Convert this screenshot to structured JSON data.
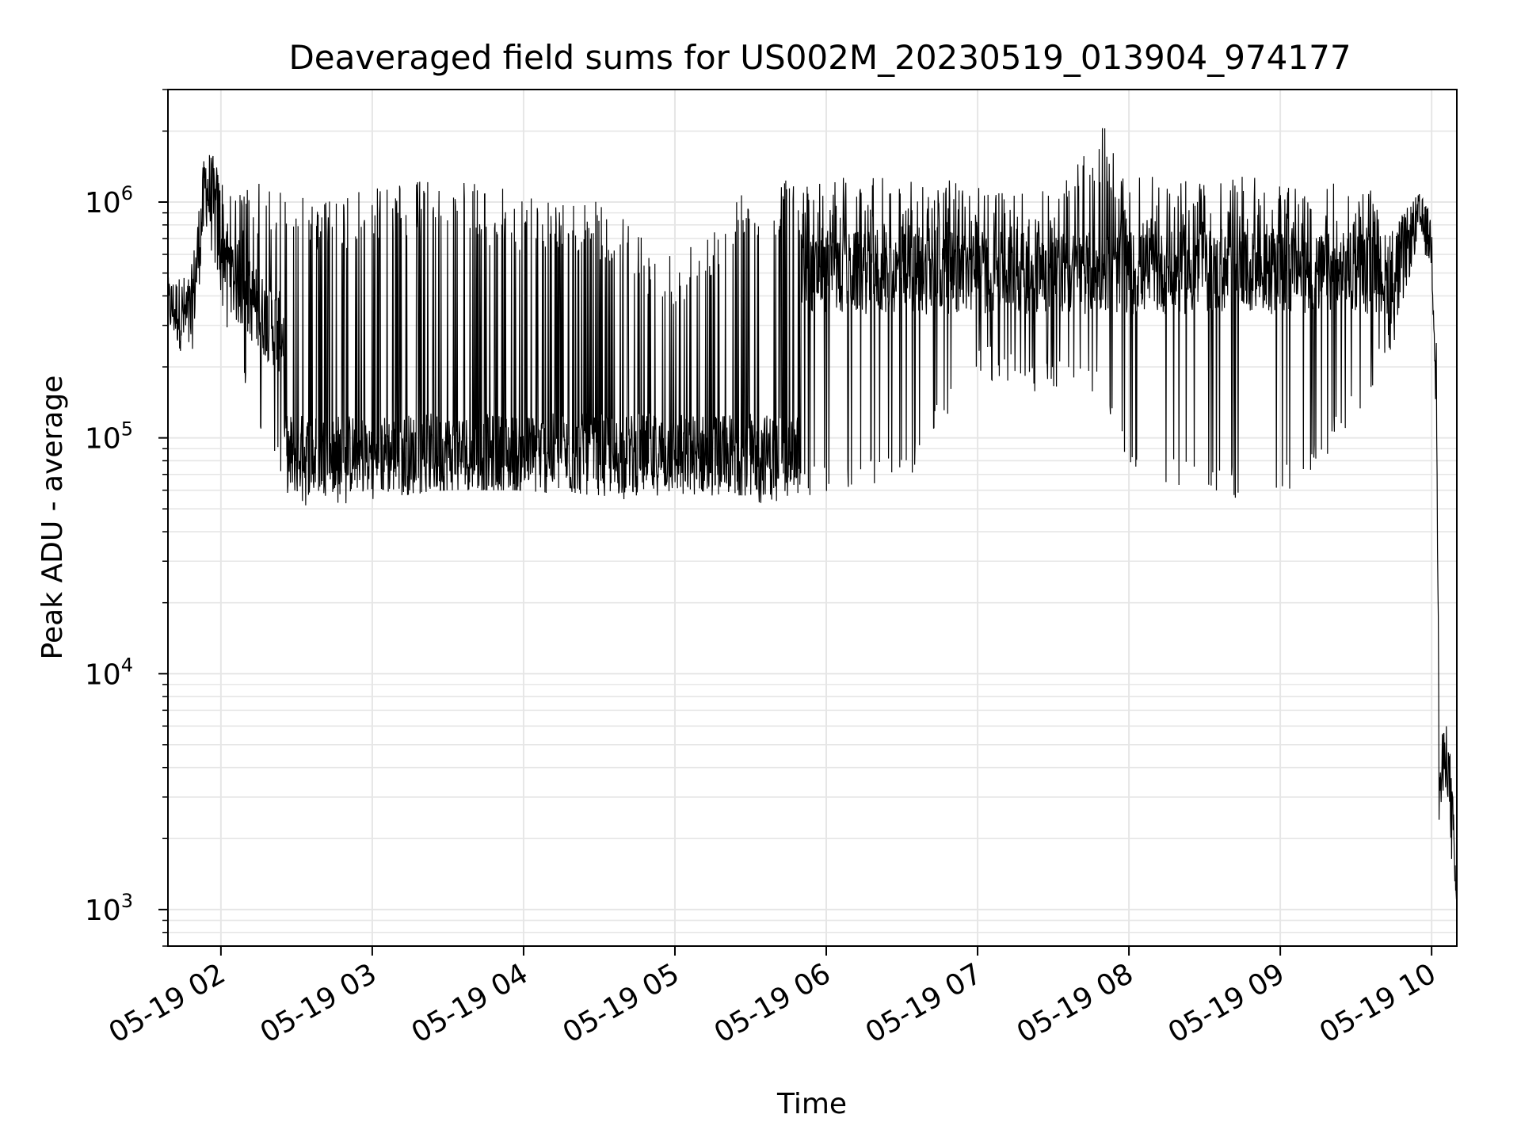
{
  "chart_data": {
    "type": "line",
    "title": "Deaveraged field sums for US002M_20230519_013904_974177",
    "xlabel": "Time",
    "ylabel": "Peak ADU - average",
    "y_scale": "log",
    "ylim": [
      700,
      3000000
    ],
    "xlim": [
      "2023-05-19 01:39",
      "2023-05-19 10:10"
    ],
    "grid": true,
    "line_color": "#000000",
    "grid_color": "#e6e6e6",
    "x_ticks": [
      {
        "t": "2023-05-19 02:00",
        "label": "05-19 02"
      },
      {
        "t": "2023-05-19 03:00",
        "label": "05-19 03"
      },
      {
        "t": "2023-05-19 04:00",
        "label": "05-19 04"
      },
      {
        "t": "2023-05-19 05:00",
        "label": "05-19 05"
      },
      {
        "t": "2023-05-19 06:00",
        "label": "05-19 06"
      },
      {
        "t": "2023-05-19 07:00",
        "label": "05-19 07"
      },
      {
        "t": "2023-05-19 08:00",
        "label": "05-19 08"
      },
      {
        "t": "2023-05-19 09:00",
        "label": "05-19 09"
      },
      {
        "t": "2023-05-19 10:00",
        "label": "05-19 10"
      }
    ],
    "y_ticks": [
      {
        "value": 1000,
        "base": "10",
        "exp": "3"
      },
      {
        "value": 10000,
        "base": "10",
        "exp": "4"
      },
      {
        "value": 100000,
        "base": "10",
        "exp": "5"
      },
      {
        "value": 1000000,
        "base": "10",
        "exp": "6"
      }
    ],
    "series": [
      {
        "envelope": [
          {
            "t": "2023-05-19 01:39",
            "low": 280000,
            "high": 480000
          },
          {
            "t": "2023-05-19 01:48",
            "low": 200000,
            "high": 500000
          },
          {
            "t": "2023-05-19 01:54",
            "low": 800000,
            "high": 1800000
          },
          {
            "t": "2023-05-19 02:05",
            "low": 200000,
            "high": 1100000
          },
          {
            "t": "2023-05-19 02:15",
            "low": 100000,
            "high": 1200000
          },
          {
            "t": "2023-05-19 02:25",
            "low": 60000,
            "high": 1200000
          },
          {
            "t": "2023-05-19 02:35",
            "low": 50000,
            "high": 1100000
          },
          {
            "t": "2023-05-19 02:45",
            "low": 50000,
            "high": 1000000
          },
          {
            "t": "2023-05-19 03:00",
            "low": 55000,
            "high": 1200000
          },
          {
            "t": "2023-05-19 03:30",
            "low": 60000,
            "high": 1250000
          },
          {
            "t": "2023-05-19 04:00",
            "low": 60000,
            "high": 1100000
          },
          {
            "t": "2023-05-19 04:30",
            "low": 55000,
            "high": 1000000
          },
          {
            "t": "2023-05-19 05:00",
            "low": 50000,
            "high": 600000
          },
          {
            "t": "2023-05-19 05:30",
            "low": 50000,
            "high": 1200000
          },
          {
            "t": "2023-05-19 06:00",
            "low": 55000,
            "high": 1300000
          },
          {
            "t": "2023-05-19 06:30",
            "low": 60000,
            "high": 1300000
          },
          {
            "t": "2023-05-19 07:00",
            "low": 180000,
            "high": 1200000
          },
          {
            "t": "2023-05-19 07:30",
            "low": 150000,
            "high": 1100000
          },
          {
            "t": "2023-05-19 07:50",
            "low": 150000,
            "high": 2100000
          },
          {
            "t": "2023-05-19 08:00",
            "low": 70000,
            "high": 1300000
          },
          {
            "t": "2023-05-19 08:40",
            "low": 55000,
            "high": 1300000
          },
          {
            "t": "2023-05-19 09:10",
            "low": 60000,
            "high": 1200000
          },
          {
            "t": "2023-05-19 09:35",
            "low": 150000,
            "high": 1200000
          },
          {
            "t": "2023-05-19 09:45",
            "low": 250000,
            "high": 800000
          },
          {
            "t": "2023-05-19 09:55",
            "low": 700000,
            "high": 1100000
          },
          {
            "t": "2023-05-19 10:00",
            "low": 500000,
            "high": 900000
          },
          {
            "t": "2023-05-19 10:02",
            "low": 100000,
            "high": 240000
          },
          {
            "t": "2023-05-19 10:03",
            "low": 2000,
            "high": 5000
          },
          {
            "t": "2023-05-19 10:06",
            "low": 3500,
            "high": 6500
          },
          {
            "t": "2023-05-19 10:08",
            "low": 1500,
            "high": 4000
          },
          {
            "t": "2023-05-19 10:10",
            "low": 900,
            "high": 1200
          }
        ],
        "baseline_regions": [
          {
            "start": "2023-05-19 02:25",
            "end": "2023-05-19 05:50",
            "level": 85000
          },
          {
            "start": "2023-05-19 05:50",
            "end": "2023-05-19 09:50",
            "level": 500000
          }
        ]
      }
    ]
  }
}
